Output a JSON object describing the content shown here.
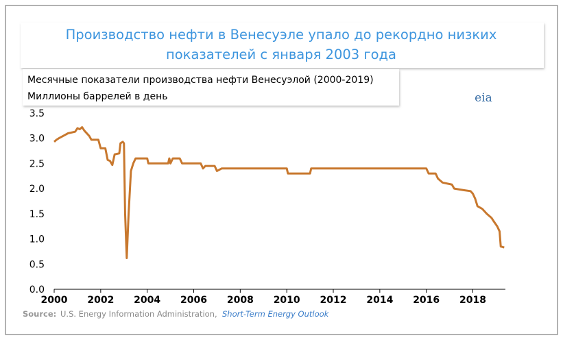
{
  "chart_data": {
    "type": "line",
    "title": "Производство нефти в Венесуэле упало до рекордно низких показателей с января 2003 года",
    "subtitle": "Месячные показатели производства нефти Венесуэлой (2000-2019)",
    "y_label": "Миллионы баррелей в день",
    "logo": "eia",
    "source_label": "Source:",
    "source_text": "U.S. Energy Information Administration,",
    "source_link": "Short-Term Energy Outlook",
    "color": "#c8782e",
    "x": [
      2000.0,
      2000.1,
      2000.2,
      2000.4,
      2000.6,
      2000.9,
      2001.0,
      2001.1,
      2001.2,
      2001.3,
      2001.5,
      2001.6,
      2001.9,
      2002.0,
      2002.2,
      2002.3,
      2002.4,
      2002.5,
      2002.6,
      2002.8,
      2002.85,
      2002.95,
      2003.0,
      2003.05,
      2003.12,
      2003.2,
      2003.3,
      2003.4,
      2003.5,
      2004.0,
      2004.05,
      2004.9,
      2004.95,
      2005.0,
      2005.1,
      2005.4,
      2005.5,
      2006.3,
      2006.4,
      2006.5,
      2006.9,
      2007.0,
      2007.2,
      2010.0,
      2010.05,
      2011.0,
      2011.05,
      2016.0,
      2016.1,
      2016.4,
      2016.5,
      2016.7,
      2017.1,
      2017.2,
      2017.6,
      2017.9,
      2018.0,
      2018.1,
      2018.2,
      2018.4,
      2018.6,
      2018.8,
      2018.9,
      2019.05,
      2019.15,
      2019.2,
      2019.35
    ],
    "values": [
      2.93,
      2.97,
      3.0,
      3.05,
      3.1,
      3.13,
      3.2,
      3.18,
      3.22,
      3.15,
      3.05,
      2.97,
      2.97,
      2.8,
      2.8,
      2.57,
      2.55,
      2.47,
      2.68,
      2.7,
      2.9,
      2.93,
      2.9,
      1.5,
      0.62,
      1.5,
      2.35,
      2.5,
      2.6,
      2.6,
      2.5,
      2.5,
      2.6,
      2.5,
      2.6,
      2.6,
      2.5,
      2.5,
      2.4,
      2.45,
      2.45,
      2.35,
      2.4,
      2.4,
      2.3,
      2.3,
      2.4,
      2.4,
      2.3,
      2.3,
      2.2,
      2.12,
      2.08,
      2.0,
      1.97,
      1.95,
      1.9,
      1.8,
      1.65,
      1.6,
      1.5,
      1.42,
      1.35,
      1.25,
      1.15,
      0.85,
      0.83
    ],
    "xlim": [
      2000,
      2019.4
    ],
    "xticks": [
      2000,
      2002,
      2004,
      2006,
      2008,
      2010,
      2012,
      2014,
      2016,
      2018
    ],
    "ylim": [
      0,
      3.5
    ],
    "yticks": [
      {
        "value": 0,
        "label": "0.0"
      },
      {
        "value": 0.5,
        "label": "0.5"
      },
      {
        "value": 1,
        "label": "1.0"
      },
      {
        "value": 1.5,
        "label": "1.5"
      },
      {
        "value": 2,
        "label": "2.0"
      },
      {
        "value": 2.5,
        "label": "2.5"
      },
      {
        "value": 3,
        "label": "3.0"
      },
      {
        "value": 3.5,
        "label": "3.5"
      }
    ],
    "grid": false
  }
}
